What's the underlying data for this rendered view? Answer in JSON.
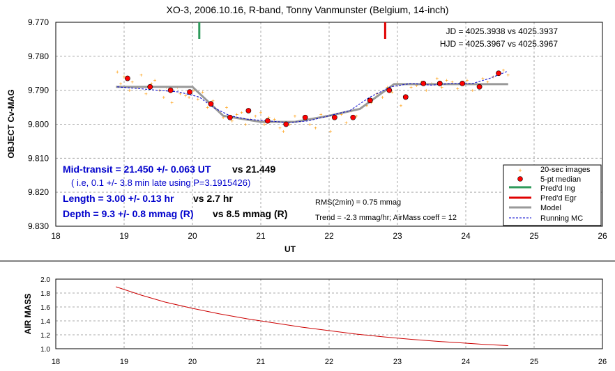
{
  "chart_data": [
    {
      "type": "scatter",
      "title": "XO-3, 2006.10.16, R-band, Tonny Vanmunster (Belgium, 14-inch)",
      "xlabel": "UT",
      "ylabel": "OBJECT Cv-MAG",
      "xlim": [
        18,
        26
      ],
      "ylim": [
        9.77,
        9.83
      ],
      "y_inverted": true,
      "x_ticks": [
        "18",
        "19",
        "20",
        "21",
        "22",
        "23",
        "24",
        "25",
        "26"
      ],
      "y_ticks": [
        "9.770",
        "9.780",
        "9.790",
        "9.800",
        "9.810",
        "9.820",
        "9.830"
      ],
      "grid": true,
      "legend_position": "bottom-right",
      "legend": [
        "20-sec images",
        "5-pt median",
        "Pred'd Ing",
        "Pred'd Egr",
        "Model",
        "Running MC"
      ],
      "colors": {
        "images": "#ff9900",
        "median": "#ff0000",
        "ingress": "#2e9a5b",
        "egress": "#e00000",
        "model": "#999999",
        "running": "#0000cc"
      },
      "annotations": {
        "jd": "JD = 4025.3938 vs 4025.3937",
        "hjd": "HJD = 4025.3967 vs 4025.3967",
        "rms": "RMS(2min) = 0.75 mmag",
        "trend": "Trend = -2.3 mmag/hr; AirMass coeff = 12",
        "mid_a": "Mid-transit = 21.450 +/- 0.063 UT",
        "mid_b": "vs 21.449",
        "ie": "( i.e, 0.1 +/- 3.8 min late using P=3.1915426)",
        "len_a": "Length = 3.00 +/- 0.13 hr",
        "len_b": "vs 2.7 hr",
        "dep_a": "Depth = 9.3 +/- 0.8 mmag (R)",
        "dep_b": "vs 8.5  mmag (R)"
      },
      "ingress_x": 20.1,
      "egress_x": 22.82,
      "model": {
        "x": [
          18.88,
          20.0,
          20.45,
          21.0,
          21.5,
          22.0,
          22.45,
          22.95,
          24.62
        ],
        "y": [
          9.789,
          9.789,
          9.7975,
          9.7993,
          9.7993,
          9.7975,
          9.7955,
          9.7882,
          9.7882
        ]
      },
      "running_mc": {
        "x": [
          18.9,
          19.2,
          19.5,
          19.8,
          20.1,
          20.3,
          20.55,
          20.8,
          21.1,
          21.4,
          21.7,
          22.0,
          22.3,
          22.6,
          22.9,
          23.2,
          23.5,
          23.8,
          24.1,
          24.35,
          24.6
        ],
        "y": [
          9.789,
          9.7895,
          9.79,
          9.7905,
          9.792,
          9.795,
          9.7975,
          9.7985,
          9.799,
          9.7995,
          9.799,
          9.7975,
          9.796,
          9.792,
          9.789,
          9.788,
          9.7885,
          9.788,
          9.788,
          9.7865,
          9.7845
        ]
      },
      "median_points": {
        "x": [
          19.05,
          19.38,
          19.68,
          19.96,
          20.27,
          20.55,
          20.82,
          21.1,
          21.37,
          21.65,
          22.08,
          22.35,
          22.6,
          22.88,
          23.12,
          23.38,
          23.62,
          23.95,
          24.2,
          24.48
        ],
        "y": [
          9.7865,
          9.789,
          9.79,
          9.7905,
          9.794,
          9.798,
          9.796,
          9.799,
          9.8,
          9.798,
          9.798,
          9.798,
          9.793,
          9.79,
          9.792,
          9.788,
          9.788,
          9.788,
          9.789,
          9.785
        ]
      },
      "image_points": {
        "x": [
          18.9,
          18.95,
          19.0,
          19.08,
          19.12,
          19.2,
          19.25,
          19.32,
          19.4,
          19.45,
          19.52,
          19.58,
          19.62,
          19.7,
          19.78,
          19.82,
          19.9,
          19.95,
          20.02,
          20.08,
          20.15,
          20.22,
          20.3,
          20.38,
          20.45,
          20.5,
          20.58,
          20.65,
          20.72,
          20.78,
          20.85,
          20.92,
          21.0,
          21.05,
          21.12,
          21.2,
          21.28,
          21.33,
          21.42,
          21.5,
          21.58,
          21.65,
          21.72,
          21.8,
          21.88,
          21.95,
          22.02,
          22.1,
          22.18,
          22.25,
          22.32,
          22.4,
          22.48,
          22.55,
          22.62,
          22.7,
          22.78,
          22.85,
          22.92,
          23.0,
          23.05,
          23.12,
          23.2,
          23.28,
          23.35,
          23.42,
          23.5,
          23.58,
          23.65,
          23.72,
          23.8,
          23.88,
          23.95,
          24.02,
          24.1,
          24.18,
          24.25,
          24.32,
          24.4,
          24.48,
          24.55,
          24.62
        ],
        "y": [
          9.7845,
          9.788,
          9.786,
          9.79,
          9.7875,
          9.789,
          9.7855,
          9.791,
          9.788,
          9.787,
          9.79,
          9.792,
          9.789,
          9.7935,
          9.789,
          9.791,
          9.7915,
          9.792,
          9.79,
          9.7925,
          9.7905,
          9.795,
          9.793,
          9.796,
          9.798,
          9.795,
          9.799,
          9.797,
          9.7965,
          9.8,
          9.7985,
          9.7975,
          9.7965,
          9.8,
          9.798,
          9.7985,
          9.801,
          9.802,
          9.8,
          9.7975,
          9.799,
          9.7985,
          9.8,
          9.801,
          9.797,
          9.7975,
          9.802,
          9.798,
          9.797,
          9.7995,
          9.796,
          9.7975,
          9.795,
          9.7945,
          9.7935,
          9.791,
          9.792,
          9.789,
          9.7905,
          9.788,
          9.7945,
          9.7915,
          9.789,
          9.7885,
          9.7875,
          9.79,
          9.788,
          9.7865,
          9.789,
          9.787,
          9.7875,
          9.7895,
          9.788,
          9.787,
          9.79,
          9.7885,
          9.7865,
          9.7875,
          9.786,
          9.7845,
          9.784,
          9.7855
        ]
      }
    },
    {
      "type": "line",
      "xlabel": "",
      "ylabel": "AIR MASS",
      "xlim": [
        18,
        26
      ],
      "ylim": [
        1.0,
        2.0
      ],
      "x_ticks": [
        "18",
        "19",
        "20",
        "21",
        "22",
        "23",
        "24",
        "25",
        "26"
      ],
      "y_ticks": [
        "1.0",
        "1.2",
        "1.4",
        "1.6",
        "1.8",
        "2.0"
      ],
      "grid": true,
      "color": "#cc0000",
      "x": [
        18.88,
        19.25,
        19.6,
        20.0,
        20.4,
        20.8,
        21.2,
        21.6,
        22.0,
        22.4,
        22.8,
        23.2,
        23.6,
        24.0,
        24.3,
        24.62
      ],
      "y": [
        1.89,
        1.77,
        1.67,
        1.58,
        1.5,
        1.43,
        1.37,
        1.31,
        1.26,
        1.21,
        1.17,
        1.135,
        1.105,
        1.08,
        1.06,
        1.045
      ]
    }
  ]
}
